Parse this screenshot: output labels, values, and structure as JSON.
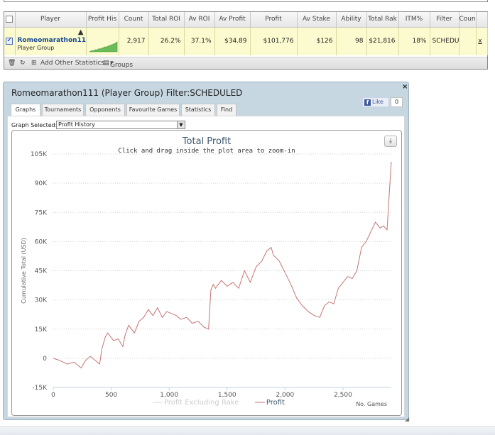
{
  "stats_table": {
    "columns": [
      "",
      "Player",
      "Profit His",
      "Count",
      "Total ROI",
      "Av ROI",
      "Av Profit",
      "Profit",
      "Av Stake",
      "Ability",
      "Total Rak",
      "ITM%",
      "Filter",
      "Coun",
      ""
    ],
    "row": {
      "checked": true,
      "player_name": "Romeomarathon11:",
      "player_sub": "Player Group",
      "count": "2,917",
      "total_roi": "26.2%",
      "av_roi": "37.1%",
      "av_profit": "$34.89",
      "profit": "$101,776",
      "av_stake": "$126",
      "ability": "98",
      "total_rake": "$21,816",
      "itm": "18%",
      "filter": "SCHEDUL",
      "count2": "",
      "remove": "x"
    },
    "sparkline": [
      0,
      0,
      1,
      1,
      1,
      2,
      2,
      2,
      3,
      3,
      3,
      4,
      4,
      5,
      5,
      5,
      6,
      6,
      7,
      7,
      8,
      8,
      9,
      10
    ]
  },
  "toolbar": {
    "add_stats_label": "Add Other Statistics",
    "groups_label": "Groups"
  },
  "window": {
    "title": "Romeomarathon111 (Player Group) Filter:SCHEDULED",
    "close_label": "×",
    "like_label": "Like",
    "like_count": "0",
    "tabs": [
      "Graphs",
      "Tournaments",
      "Opponents",
      "Favourite Games",
      "Statistics",
      "Find"
    ],
    "graph_selected_label": "Graph Selected:",
    "graph_selected_value": "Profit History"
  },
  "chart_data": {
    "type": "line",
    "title": "Total Profit",
    "subtitle": "Click and drag inside the plot area to zoom-in",
    "xlabel": "No. Games",
    "ylabel": "Cumulative Total (USD)",
    "xlim": [
      0,
      2917
    ],
    "ylim": [
      -15000,
      105000
    ],
    "x_ticks": [
      0,
      500,
      1000,
      1500,
      2000,
      2500
    ],
    "x_tick_labels": [
      "0",
      "500",
      "1,000",
      "1,500",
      "2,000",
      "2,500"
    ],
    "y_ticks": [
      -15000,
      0,
      15000,
      30000,
      45000,
      60000,
      75000,
      90000,
      105000
    ],
    "y_tick_labels": [
      "-15K",
      "0",
      "15K",
      "30K",
      "45K",
      "60K",
      "75K",
      "90K",
      "105K"
    ],
    "grid": "horizontal-dotted",
    "legend_position": "bottom-center",
    "series": [
      {
        "name": "Profit Excluding Rake",
        "color": "#d8d8d8",
        "visible": false,
        "x": [],
        "y": []
      },
      {
        "name": "Profit",
        "color": "#c47474",
        "visible": true,
        "x": [
          0,
          50,
          120,
          180,
          240,
          280,
          320,
          400,
          420,
          450,
          470,
          520,
          560,
          600,
          620,
          650,
          700,
          740,
          780,
          820,
          860,
          900,
          940,
          980,
          1020,
          1060,
          1100,
          1150,
          1200,
          1250,
          1300,
          1340,
          1360,
          1380,
          1400,
          1450,
          1500,
          1550,
          1600,
          1650,
          1700,
          1750,
          1800,
          1840,
          1880,
          1900,
          1950,
          2000,
          2050,
          2100,
          2150,
          2200,
          2250,
          2300,
          2340,
          2380,
          2420,
          2460,
          2500,
          2540,
          2580,
          2620,
          2660,
          2700,
          2740,
          2780,
          2820,
          2850,
          2880,
          2900,
          2917
        ],
        "y": [
          0,
          -1000,
          -3000,
          -2000,
          -5000,
          -1000,
          1000,
          -3000,
          5000,
          11000,
          13000,
          9000,
          10000,
          6000,
          12000,
          17000,
          13000,
          19000,
          21000,
          25000,
          22000,
          26000,
          21000,
          24000,
          23000,
          22000,
          20000,
          21000,
          18000,
          19000,
          16000,
          15000,
          35000,
          38000,
          36000,
          40000,
          37000,
          39000,
          36000,
          45000,
          39000,
          47000,
          50000,
          55000,
          57000,
          53000,
          50000,
          44000,
          38000,
          31000,
          27000,
          24000,
          22000,
          21000,
          27000,
          29000,
          28000,
          36000,
          39000,
          42000,
          41000,
          45000,
          57000,
          60000,
          65000,
          70000,
          67000,
          68000,
          66000,
          85000,
          101000
        ]
      }
    ]
  }
}
